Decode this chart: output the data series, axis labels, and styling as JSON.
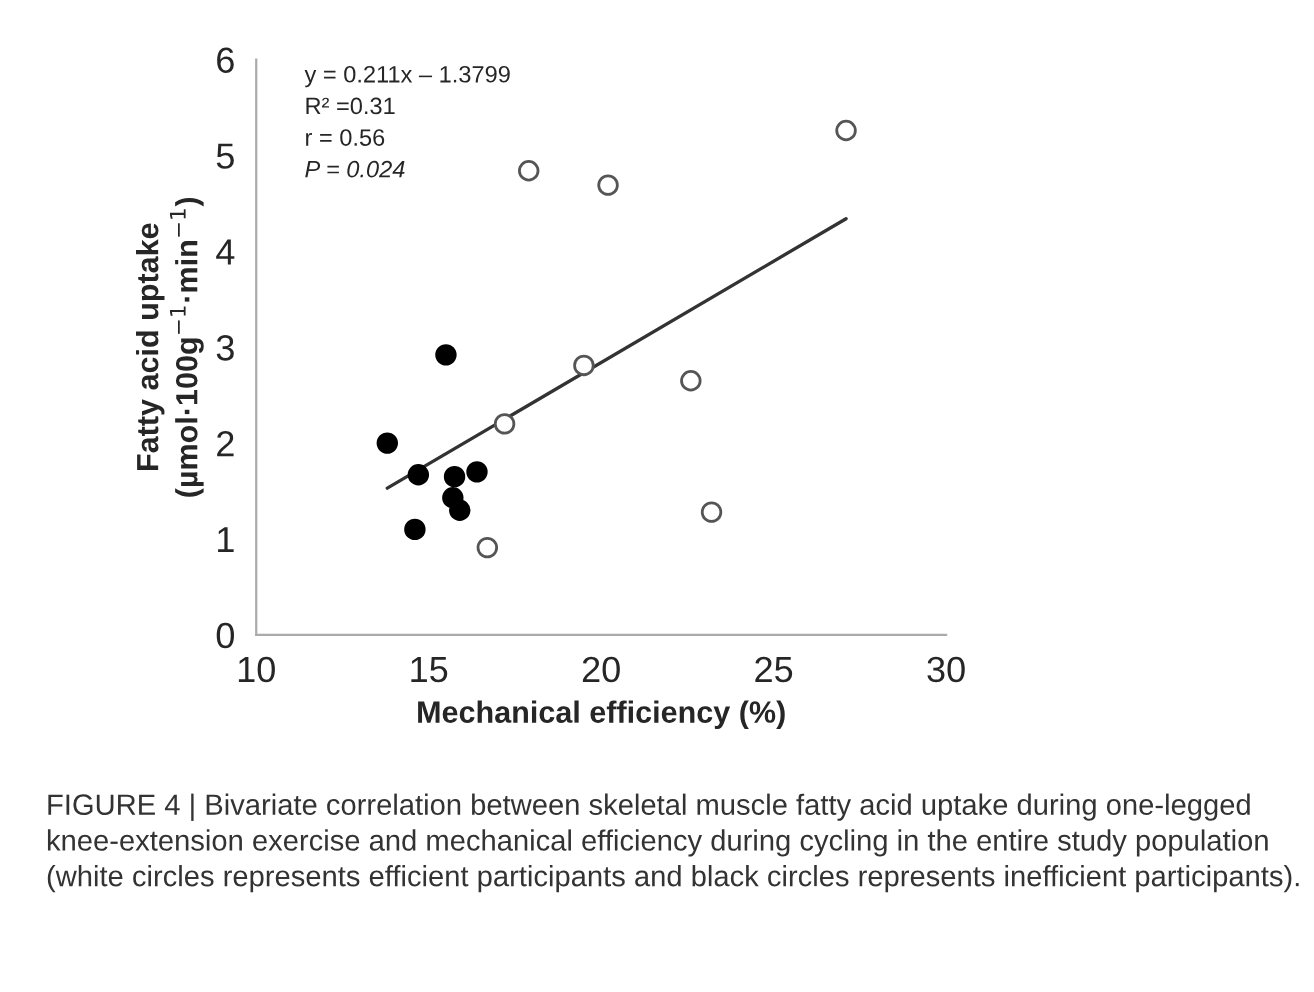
{
  "chart_data": {
    "type": "scatter",
    "xlabel": "Mechanical efficiency (%)",
    "ylabel": "Fatty acid uptake\n(µmol·100g$^{−1}$·min$^{−1}$)",
    "xlim": [
      10,
      30
    ],
    "xticks": [
      10,
      15,
      20,
      25,
      30
    ],
    "ylim": [
      0,
      6
    ],
    "yticks": [
      0,
      1,
      2,
      3,
      4,
      5,
      6
    ],
    "grid": false,
    "legend": false,
    "marker": "circle",
    "series": [
      {
        "color": "#000000",
        "x": [
          13.8,
          15.5,
          14.7,
          14.6,
          15.75,
          16.4,
          15.7,
          15.9
        ],
        "values": [
          2.0,
          2.92,
          1.67,
          1.1,
          1.65,
          1.7,
          1.43,
          1.3
        ]
      },
      {
        "color": "#ffffff",
        "x": [
          17.9,
          20.2,
          27.1,
          19.5,
          17.2,
          22.6,
          23.2,
          16.7
        ],
        "values": [
          4.84,
          4.69,
          5.26,
          2.81,
          2.2,
          2.65,
          1.28,
          0.91
        ]
      },
      {
        "type": "line",
        "marker": "none",
        "color": "#333333",
        "x": [
          13.8,
          27.1
        ],
        "values": [
          1.53,
          4.34
        ]
      }
    ],
    "annotations": [
      "y = 0.211x – 1.3799",
      "R² =0.31",
      "r = 0.56",
      "P = 0.024",
      "FIGURE 4 | Bivariate correlation between skeletal muscle fatty acid uptake during one-legged knee-extension exercise and mechanical efficiency during cycling in the entire study population (white circles represents efficient participants and black circles represents inefficient participants)."
    ]
  }
}
